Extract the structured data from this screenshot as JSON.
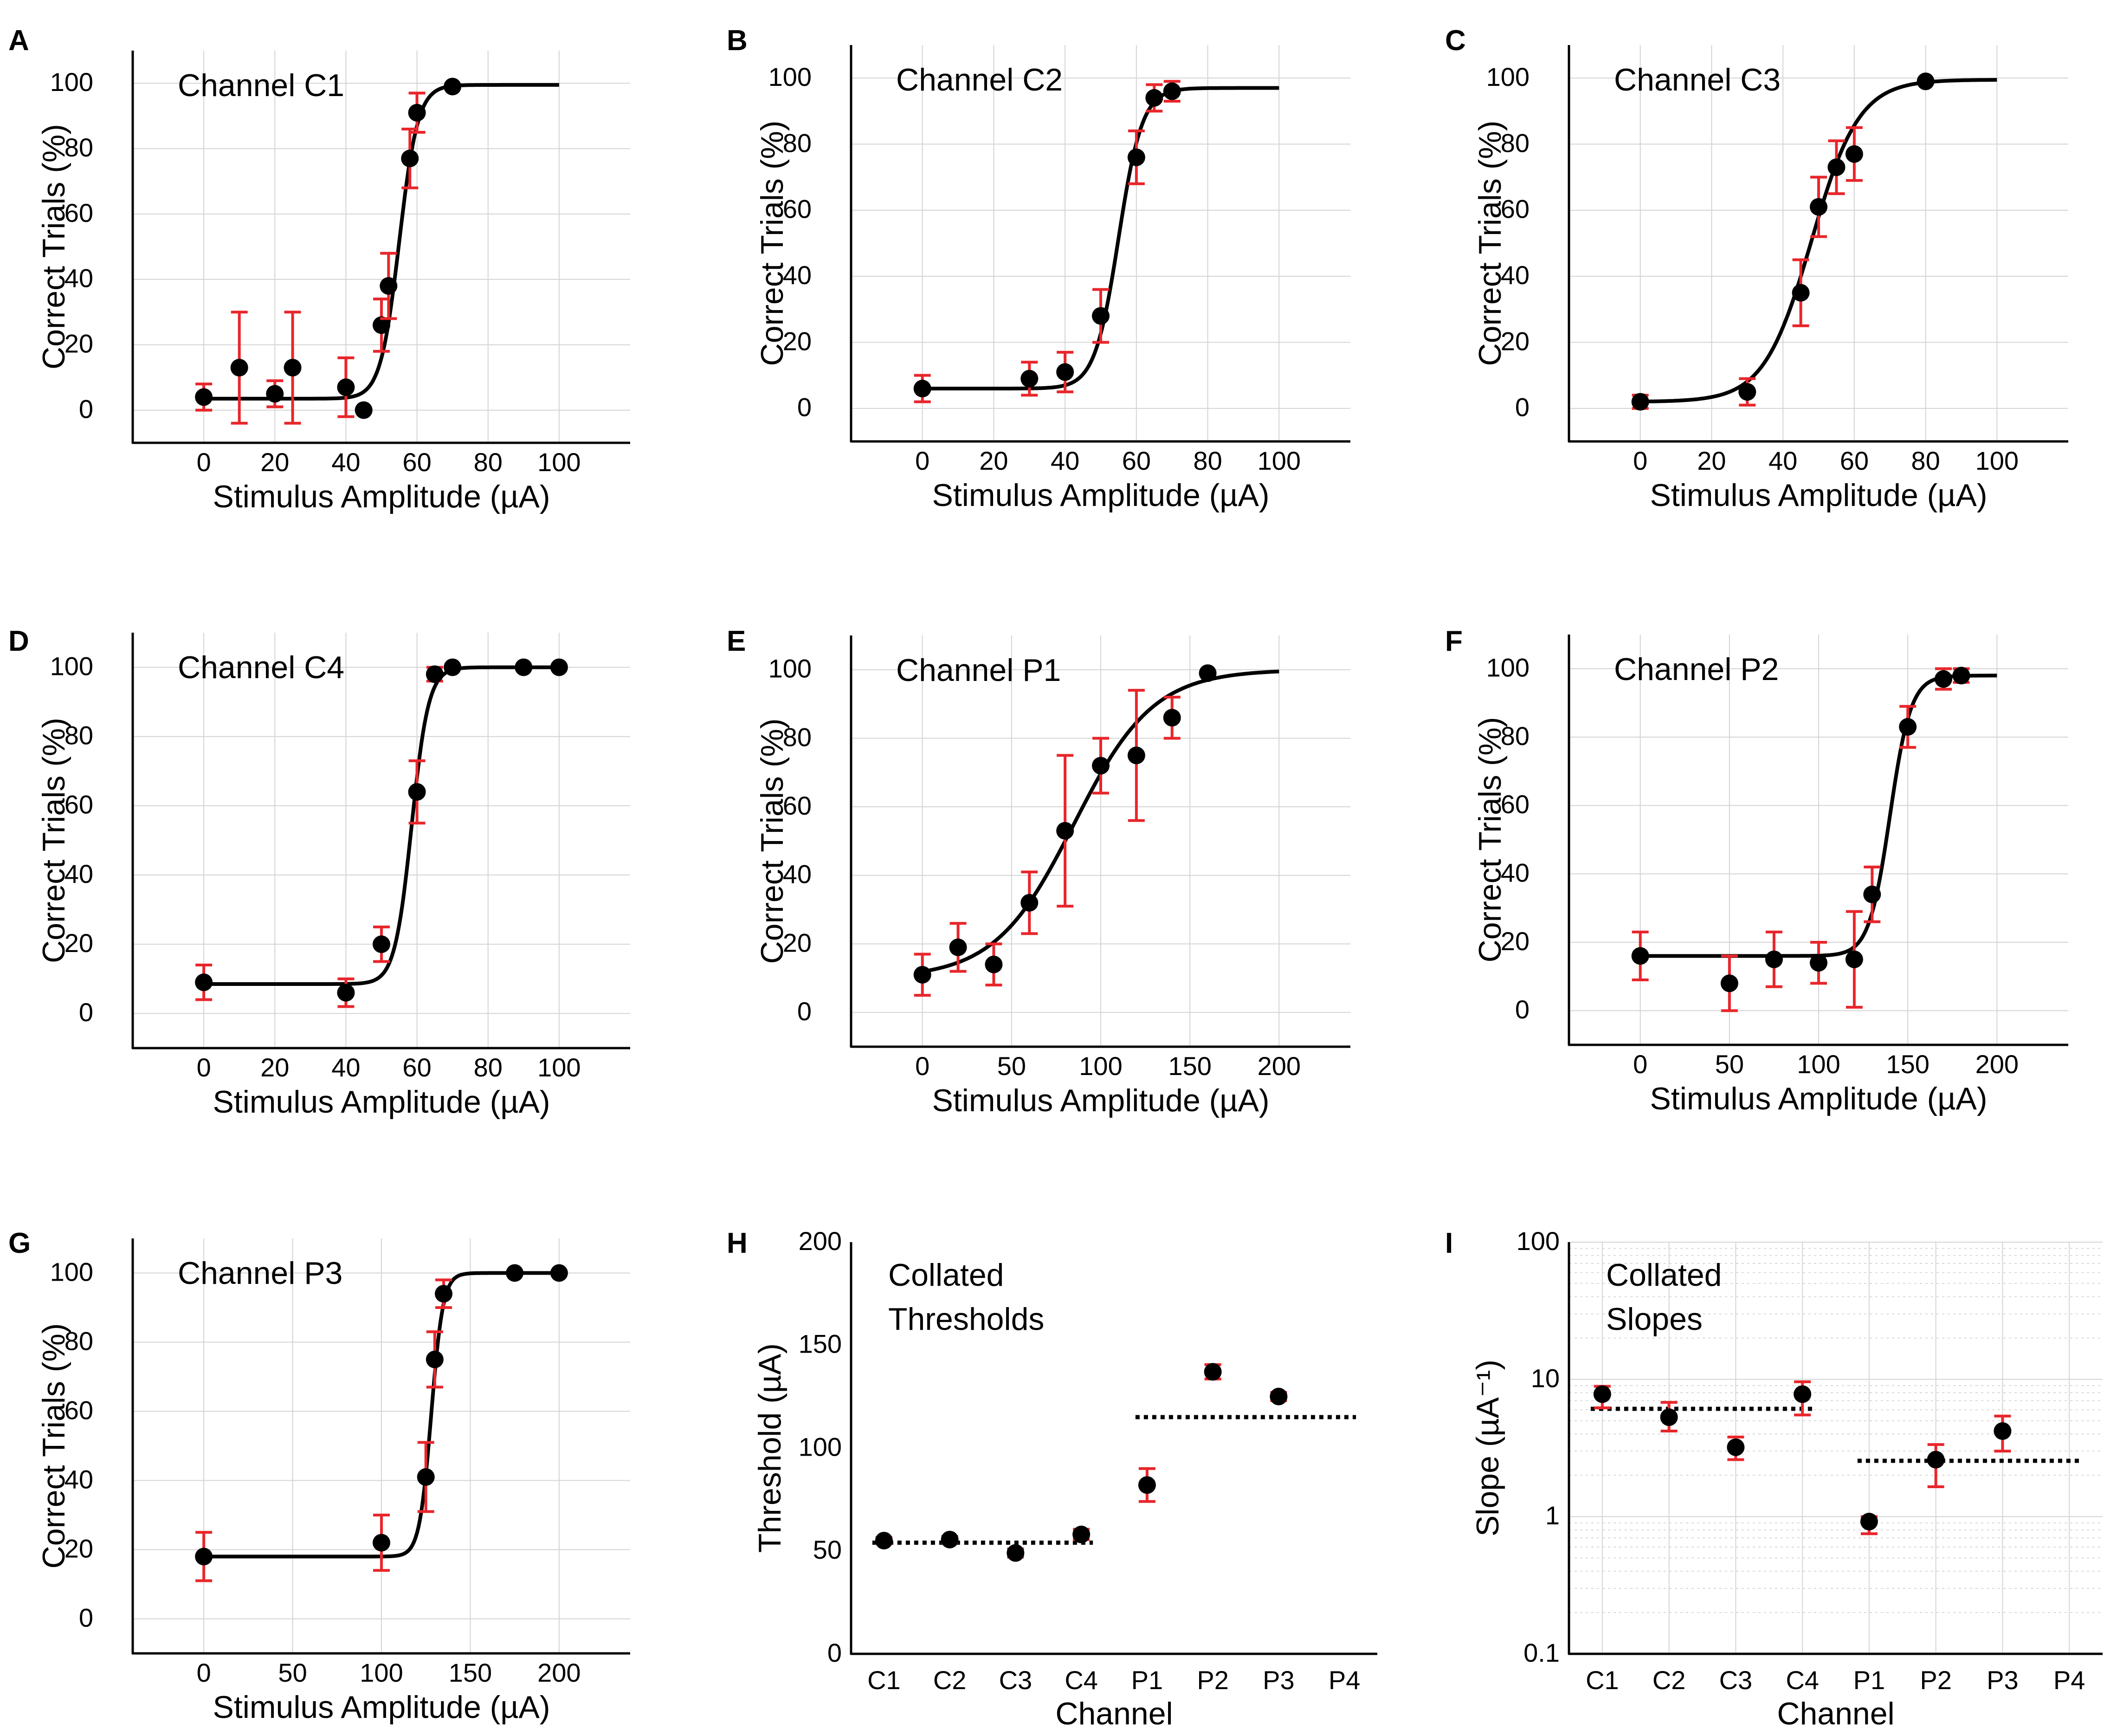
{
  "chart_data": [
    {
      "panel": "A",
      "type": "scatter",
      "title": "Channel C1",
      "xlabel": "Stimulus Amplitude (µA)",
      "ylabel": "Correct Trials (%)",
      "xlim": [
        -20,
        120
      ],
      "ylim": [
        -10,
        110
      ],
      "xticks": [
        0,
        20,
        40,
        60,
        80,
        100
      ],
      "yticks": [
        0,
        20,
        40,
        60,
        80,
        100
      ],
      "grid": true,
      "points": [
        {
          "x": 0,
          "y": 4,
          "err": 4
        },
        {
          "x": 10,
          "y": 13,
          "err": 17
        },
        {
          "x": 20,
          "y": 5,
          "err": 4
        },
        {
          "x": 25,
          "y": 13,
          "err": 17
        },
        {
          "x": 40,
          "y": 7,
          "err": 9
        },
        {
          "x": 45,
          "y": 0,
          "err": 0
        },
        {
          "x": 50,
          "y": 26,
          "err": 8
        },
        {
          "x": 52,
          "y": 38,
          "err": 10
        },
        {
          "x": 58,
          "y": 77,
          "err": 9
        },
        {
          "x": 60,
          "y": 91,
          "err": 6
        },
        {
          "x": 70,
          "y": 99,
          "err": 0
        }
      ],
      "fit": {
        "min": 3.5,
        "max": 99.5,
        "x50": 55,
        "k": 0.38,
        "xrange": [
          0,
          100
        ]
      }
    },
    {
      "panel": "B",
      "type": "scatter",
      "title": "Channel C2",
      "xlabel": "Stimulus Amplitude (µA)",
      "ylabel": "Correct Trials (%)",
      "xlim": [
        -20,
        120
      ],
      "ylim": [
        -10,
        110
      ],
      "xticks": [
        0,
        20,
        40,
        60,
        80,
        100
      ],
      "yticks": [
        0,
        20,
        40,
        60,
        80,
        100
      ],
      "grid": true,
      "points": [
        {
          "x": 0,
          "y": 6,
          "err": 4
        },
        {
          "x": 30,
          "y": 9,
          "err": 5
        },
        {
          "x": 40,
          "y": 11,
          "err": 6
        },
        {
          "x": 50,
          "y": 28,
          "err": 8
        },
        {
          "x": 60,
          "y": 76,
          "err": 8
        },
        {
          "x": 65,
          "y": 94,
          "err": 4
        },
        {
          "x": 70,
          "y": 96,
          "err": 3
        }
      ],
      "fit": {
        "min": 6,
        "max": 97,
        "x50": 55,
        "k": 0.3,
        "xrange": [
          0,
          100
        ]
      }
    },
    {
      "panel": "C",
      "type": "scatter",
      "title": "Channel C3",
      "xlabel": "Stimulus Amplitude (µA)",
      "ylabel": "Correct Trials (%)",
      "xlim": [
        -20,
        120
      ],
      "ylim": [
        -10,
        110
      ],
      "xticks": [
        0,
        20,
        40,
        60,
        80,
        100
      ],
      "yticks": [
        0,
        20,
        40,
        60,
        80,
        100
      ],
      "grid": true,
      "points": [
        {
          "x": 0,
          "y": 2,
          "err": 2
        },
        {
          "x": 30,
          "y": 5,
          "err": 4
        },
        {
          "x": 45,
          "y": 35,
          "err": 10
        },
        {
          "x": 50,
          "y": 61,
          "err": 9
        },
        {
          "x": 55,
          "y": 73,
          "err": 8
        },
        {
          "x": 60,
          "y": 77,
          "err": 8
        },
        {
          "x": 80,
          "y": 99,
          "err": 0
        }
      ],
      "fit": {
        "min": 2,
        "max": 99.5,
        "x50": 48,
        "k": 0.15,
        "xrange": [
          0,
          100
        ]
      }
    },
    {
      "panel": "D",
      "type": "scatter",
      "title": "Channel C4",
      "xlabel": "Stimulus Amplitude (µA)",
      "ylabel": "Correct Trials (%)",
      "xlim": [
        -20,
        120
      ],
      "ylim": [
        -10,
        110
      ],
      "xticks": [
        0,
        20,
        40,
        60,
        80,
        100
      ],
      "yticks": [
        0,
        20,
        40,
        60,
        80,
        100
      ],
      "grid": true,
      "points": [
        {
          "x": 0,
          "y": 9,
          "err": 5
        },
        {
          "x": 40,
          "y": 6,
          "err": 4
        },
        {
          "x": 50,
          "y": 20,
          "err": 5
        },
        {
          "x": 60,
          "y": 64,
          "err": 9
        },
        {
          "x": 65,
          "y": 98,
          "err": 2
        },
        {
          "x": 70,
          "y": 100,
          "err": 0
        },
        {
          "x": 90,
          "y": 100,
          "err": 0
        },
        {
          "x": 100,
          "y": 100,
          "err": 0
        }
      ],
      "fit": {
        "min": 8.5,
        "max": 100,
        "x50": 58.5,
        "k": 0.42,
        "xrange": [
          0,
          100
        ]
      }
    },
    {
      "panel": "E",
      "type": "scatter",
      "title": "Channel P1",
      "xlabel": "Stimulus Amplitude (µA)",
      "ylabel": "Correct Trials (%)",
      "xlim": [
        -40,
        240
      ],
      "ylim": [
        -10,
        110
      ],
      "xticks": [
        0,
        50,
        100,
        150,
        200
      ],
      "yticks": [
        0,
        20,
        40,
        60,
        80,
        100
      ],
      "grid": true,
      "points": [
        {
          "x": 0,
          "y": 11,
          "err": 6
        },
        {
          "x": 20,
          "y": 19,
          "err": 7
        },
        {
          "x": 40,
          "y": 14,
          "err": 6
        },
        {
          "x": 60,
          "y": 32,
          "err": 9
        },
        {
          "x": 80,
          "y": 53,
          "err": 22
        },
        {
          "x": 100,
          "y": 72,
          "err": 8
        },
        {
          "x": 120,
          "y": 75,
          "err": 19
        },
        {
          "x": 140,
          "y": 86,
          "err": 6
        },
        {
          "x": 160,
          "y": 99,
          "err": 0
        }
      ],
      "fit": {
        "min": 10,
        "max": 100,
        "x50": 85,
        "k": 0.045,
        "xrange": [
          0,
          200
        ]
      }
    },
    {
      "panel": "F",
      "type": "scatter",
      "title": "Channel P2",
      "xlabel": "Stimulus Amplitude (µA)",
      "ylabel": "Correct Trials (%)",
      "xlim": [
        -40,
        240
      ],
      "ylim": [
        -10,
        110
      ],
      "xticks": [
        0,
        50,
        100,
        150,
        200
      ],
      "yticks": [
        0,
        20,
        40,
        60,
        80,
        100
      ],
      "grid": true,
      "points": [
        {
          "x": 0,
          "y": 16,
          "err": 7
        },
        {
          "x": 50,
          "y": 8,
          "err": 8
        },
        {
          "x": 75,
          "y": 15,
          "err": 8
        },
        {
          "x": 100,
          "y": 14,
          "err": 6
        },
        {
          "x": 120,
          "y": 15,
          "err": 14
        },
        {
          "x": 130,
          "y": 34,
          "err": 8
        },
        {
          "x": 150,
          "y": 83,
          "err": 6
        },
        {
          "x": 170,
          "y": 97,
          "err": 3
        },
        {
          "x": 180,
          "y": 98,
          "err": 2
        }
      ],
      "fit": {
        "min": 16,
        "max": 98,
        "x50": 140,
        "k": 0.17,
        "xrange": [
          0,
          200
        ]
      }
    },
    {
      "panel": "G",
      "type": "scatter",
      "title": "Channel P3",
      "xlabel": "Stimulus Amplitude (µA)",
      "ylabel": "Correct Trials (%)",
      "xlim": [
        -40,
        240
      ],
      "ylim": [
        -10,
        110
      ],
      "xticks": [
        0,
        50,
        100,
        150,
        200
      ],
      "yticks": [
        0,
        20,
        40,
        60,
        80,
        100
      ],
      "grid": true,
      "points": [
        {
          "x": 0,
          "y": 18,
          "err": 7
        },
        {
          "x": 100,
          "y": 22,
          "err": 8
        },
        {
          "x": 125,
          "y": 41,
          "err": 10
        },
        {
          "x": 130,
          "y": 75,
          "err": 8
        },
        {
          "x": 135,
          "y": 94,
          "err": 4
        },
        {
          "x": 175,
          "y": 100,
          "err": 0
        },
        {
          "x": 200,
          "y": 100,
          "err": 0
        }
      ],
      "fit": {
        "min": 18,
        "max": 100,
        "x50": 128,
        "k": 0.3,
        "xrange": [
          0,
          200
        ]
      }
    },
    {
      "panel": "H",
      "type": "scatter",
      "title": "Collated Thresholds",
      "title_lines": [
        "Collated",
        "Thresholds"
      ],
      "xlabel": "Channel",
      "ylabel": "Threshold (µA)",
      "categories": [
        "C1",
        "C2",
        "C3",
        "C4",
        "P1",
        "P2",
        "P3",
        "P4"
      ],
      "ylim": [
        0,
        200
      ],
      "yticks": [
        0,
        50,
        100,
        150,
        200
      ],
      "grid": false,
      "points": [
        {
          "x": "C1",
          "y": 55,
          "err": 1.5
        },
        {
          "x": "C2",
          "y": 55.5,
          "err": 1.5
        },
        {
          "x": "C3",
          "y": 49,
          "err": 2
        },
        {
          "x": "C4",
          "y": 58,
          "err": 2.5
        },
        {
          "x": "P1",
          "y": 82,
          "err": 8
        },
        {
          "x": "P2",
          "y": 137,
          "err": 3.5
        },
        {
          "x": "P3",
          "y": 125,
          "err": 2
        }
      ],
      "means": [
        {
          "from": "C1",
          "to": "C4",
          "y": 54
        },
        {
          "from": "P1",
          "to": "P4",
          "y": 115
        }
      ]
    },
    {
      "panel": "I",
      "type": "scatter",
      "title": "Collated Slopes",
      "title_lines": [
        "Collated",
        "Slopes"
      ],
      "xlabel": "Channel",
      "ylabel": "Slope (µA⁻¹)",
      "categories": [
        "C1",
        "C2",
        "C3",
        "C4",
        "P1",
        "P2",
        "P3",
        "P4"
      ],
      "yscale": "log",
      "ylim": [
        0.1,
        100
      ],
      "yticks": [
        0.1,
        1,
        10,
        100
      ],
      "ytick_labels": [
        "0.1",
        "1",
        "10",
        "100"
      ],
      "grid": true,
      "points": [
        {
          "x": "C1",
          "y": 7.8,
          "lo": 6.2,
          "hi": 8.9
        },
        {
          "x": "C2",
          "y": 5.3,
          "lo": 4.2,
          "hi": 6.8
        },
        {
          "x": "C3",
          "y": 3.2,
          "lo": 2.6,
          "hi": 3.8
        },
        {
          "x": "C4",
          "y": 7.8,
          "lo": 5.5,
          "hi": 9.6
        },
        {
          "x": "P1",
          "y": 0.92,
          "lo": 0.75,
          "hi": 1.0
        },
        {
          "x": "P2",
          "y": 2.6,
          "lo": 1.65,
          "hi": 3.35
        },
        {
          "x": "P3",
          "y": 4.2,
          "lo": 3.0,
          "hi": 5.4
        }
      ],
      "means": [
        {
          "from": "C1",
          "to": "C4",
          "y": 6.1
        },
        {
          "from": "P1",
          "to": "P4",
          "y": 2.55
        }
      ]
    }
  ],
  "colors": {
    "marker": "#000000",
    "error_bar": "#e8262b",
    "grid": "#d4d4d4",
    "axis": "#000000",
    "fit": "#000000"
  }
}
